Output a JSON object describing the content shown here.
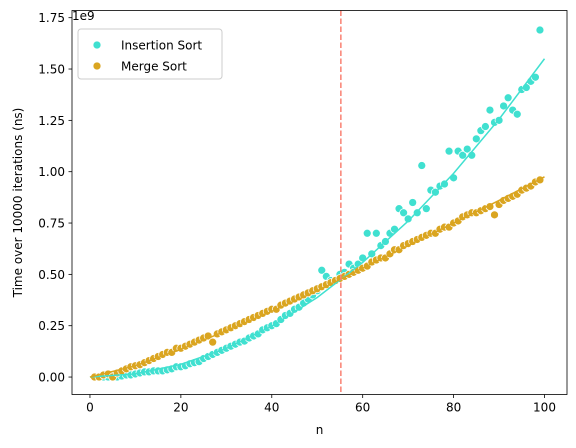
{
  "chart_data": {
    "type": "scatter",
    "xlabel": "n",
    "ylabel": "Time over 10000 iterations (ns)",
    "y_offset_label": "1e9",
    "xlim": [
      -3.95,
      104.95
    ],
    "ylim": [
      -0.085,
      1.785
    ],
    "x_ticks": [
      0,
      20,
      40,
      60,
      80,
      100
    ],
    "x_tick_labels": [
      "0",
      "20",
      "40",
      "60",
      "80",
      "100"
    ],
    "y_ticks": [
      0.0,
      0.25,
      0.5,
      0.75,
      1.0,
      1.25,
      1.5,
      1.75
    ],
    "y_tick_labels": [
      "0.00",
      "0.25",
      "0.50",
      "0.75",
      "1.00",
      "1.25",
      "1.50",
      "1.75"
    ],
    "grid": false,
    "legend_position": "top-left",
    "vline": {
      "x": 55.2,
      "color": "#fa8072",
      "style": "dashed"
    },
    "series": [
      {
        "name": "Insertion Sort",
        "color": "#40e0d0",
        "x": [
          1,
          2,
          3,
          4,
          5,
          6,
          7,
          8,
          9,
          10,
          11,
          12,
          13,
          14,
          15,
          16,
          17,
          18,
          19,
          20,
          21,
          22,
          23,
          24,
          25,
          26,
          27,
          28,
          29,
          30,
          31,
          32,
          33,
          34,
          35,
          36,
          37,
          38,
          39,
          40,
          41,
          42,
          43,
          44,
          45,
          46,
          47,
          48,
          49,
          50,
          51,
          52,
          53,
          54,
          55,
          56,
          57,
          58,
          59,
          60,
          61,
          62,
          63,
          64,
          65,
          66,
          67,
          68,
          69,
          70,
          71,
          72,
          73,
          74,
          75,
          76,
          77,
          78,
          79,
          80,
          81,
          82,
          83,
          84,
          85,
          86,
          87,
          88,
          89,
          90,
          91,
          92,
          93,
          94,
          95,
          96,
          97,
          98,
          99
        ],
        "y": [
          0.0,
          0.0,
          0.0,
          0.0,
          0.005,
          0.0,
          0.005,
          0.01,
          0.01,
          0.015,
          0.02,
          0.025,
          0.025,
          0.03,
          0.03,
          0.03,
          0.035,
          0.04,
          0.05,
          0.05,
          0.055,
          0.065,
          0.07,
          0.075,
          0.09,
          0.1,
          0.11,
          0.12,
          0.13,
          0.14,
          0.15,
          0.16,
          0.17,
          0.175,
          0.19,
          0.2,
          0.21,
          0.23,
          0.24,
          0.25,
          0.26,
          0.28,
          0.3,
          0.31,
          0.33,
          0.34,
          0.36,
          0.38,
          0.4,
          0.42,
          0.52,
          0.49,
          0.47,
          0.47,
          0.5,
          0.51,
          0.55,
          0.53,
          0.55,
          0.58,
          0.7,
          0.6,
          0.7,
          0.64,
          0.66,
          0.7,
          0.72,
          0.82,
          0.8,
          0.77,
          0.85,
          0.8,
          1.03,
          0.82,
          0.91,
          0.9,
          0.93,
          0.94,
          1.1,
          0.97,
          1.1,
          1.08,
          1.11,
          1.08,
          1.16,
          1.2,
          1.22,
          1.3,
          1.24,
          1.25,
          1.32,
          1.36,
          1.3,
          1.28,
          1.4,
          1.41,
          1.44,
          1.46,
          1.69
        ]
      },
      {
        "name": "Merge Sort",
        "color": "#daa520",
        "x": [
          1,
          2,
          3,
          4,
          5,
          6,
          7,
          8,
          9,
          10,
          11,
          12,
          13,
          14,
          15,
          16,
          17,
          18,
          19,
          20,
          21,
          22,
          23,
          24,
          25,
          26,
          27,
          28,
          29,
          30,
          31,
          32,
          33,
          34,
          35,
          36,
          37,
          38,
          39,
          40,
          41,
          42,
          43,
          44,
          45,
          46,
          47,
          48,
          49,
          50,
          51,
          52,
          53,
          54,
          55,
          56,
          57,
          58,
          59,
          60,
          61,
          62,
          63,
          64,
          65,
          66,
          67,
          68,
          69,
          70,
          71,
          72,
          73,
          74,
          75,
          76,
          77,
          78,
          79,
          80,
          81,
          82,
          83,
          84,
          85,
          86,
          87,
          88,
          89,
          90,
          91,
          92,
          93,
          94,
          95,
          96,
          97,
          98,
          99
        ],
        "y": [
          0.0,
          0.0,
          0.01,
          0.015,
          0.0,
          0.02,
          0.03,
          0.04,
          0.05,
          0.055,
          0.06,
          0.07,
          0.08,
          0.09,
          0.1,
          0.11,
          0.12,
          0.12,
          0.14,
          0.14,
          0.15,
          0.16,
          0.17,
          0.18,
          0.19,
          0.2,
          0.17,
          0.21,
          0.22,
          0.23,
          0.24,
          0.25,
          0.26,
          0.27,
          0.28,
          0.29,
          0.3,
          0.31,
          0.32,
          0.33,
          0.33,
          0.35,
          0.36,
          0.37,
          0.38,
          0.39,
          0.4,
          0.41,
          0.42,
          0.43,
          0.44,
          0.45,
          0.46,
          0.47,
          0.48,
          0.49,
          0.5,
          0.51,
          0.52,
          0.53,
          0.54,
          0.56,
          0.57,
          0.58,
          0.58,
          0.6,
          0.62,
          0.62,
          0.64,
          0.65,
          0.66,
          0.67,
          0.68,
          0.69,
          0.7,
          0.7,
          0.72,
          0.73,
          0.73,
          0.75,
          0.76,
          0.78,
          0.79,
          0.8,
          0.8,
          0.81,
          0.82,
          0.83,
          0.79,
          0.84,
          0.86,
          0.87,
          0.88,
          0.89,
          0.91,
          0.92,
          0.93,
          0.95,
          0.96
        ]
      }
    ],
    "fit_lines": [
      {
        "series": "Insertion Sort",
        "color": "#40e0d0",
        "x": [
          0,
          10,
          20,
          30,
          40,
          50,
          60,
          70,
          80,
          90,
          100
        ],
        "y": [
          0.0,
          0.0155,
          0.062,
          0.1395,
          0.248,
          0.3875,
          0.558,
          0.7595,
          0.992,
          1.2555,
          1.55
        ]
      },
      {
        "series": "Merge Sort",
        "color": "#daa520",
        "x": [
          0,
          10,
          20,
          30,
          40,
          50,
          60,
          70,
          80,
          90,
          100
        ],
        "y": [
          0.0,
          0.055,
          0.135,
          0.225,
          0.32,
          0.42,
          0.53,
          0.64,
          0.75,
          0.86,
          0.975
        ]
      }
    ]
  }
}
